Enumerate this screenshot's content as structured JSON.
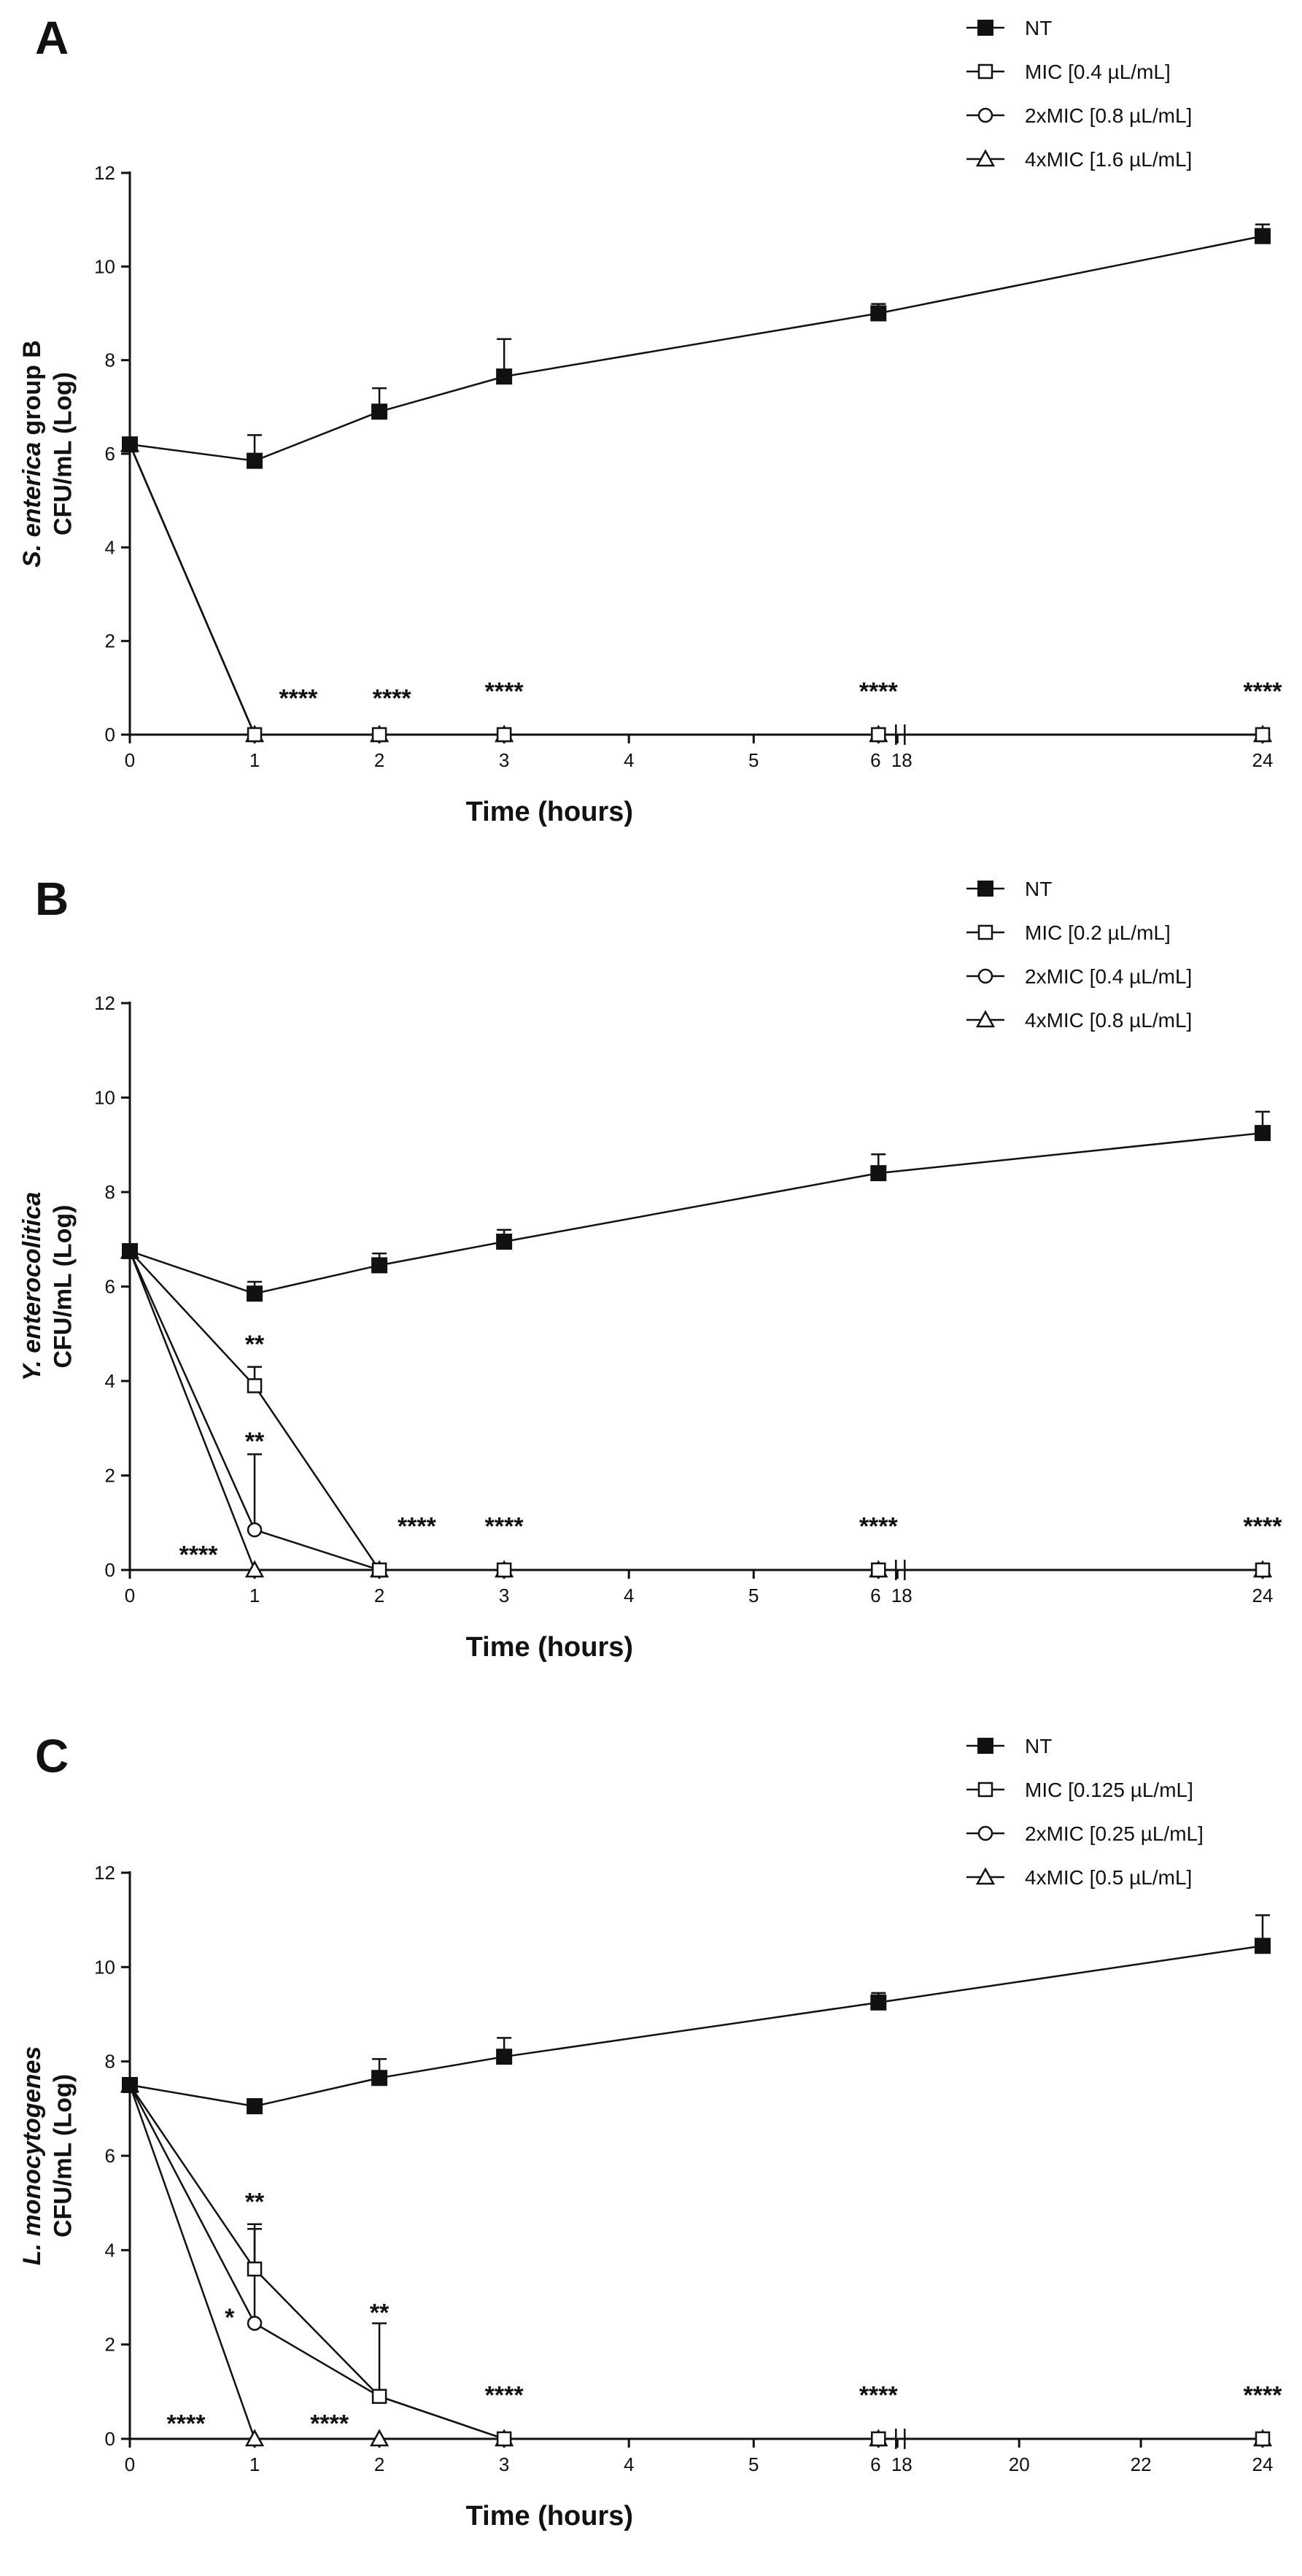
{
  "chart_data": [
    {
      "type": "line",
      "panel": "A",
      "ylabel_lines": [
        [
          {
            "text": "S. enterica",
            "italic": true
          },
          {
            "text": " group B",
            "italic": false
          }
        ],
        [
          {
            "text": "CFU/mL (Log)",
            "italic": false
          }
        ]
      ],
      "xlabel": "Time (hours)",
      "ylim": [
        0,
        12
      ],
      "yticks": [
        0,
        2,
        4,
        6,
        8,
        10,
        12
      ],
      "xticks": [
        0,
        1,
        2,
        3,
        4,
        5,
        6,
        18,
        24
      ],
      "series": [
        {
          "name": "NT",
          "marker": "square-filled",
          "x": [
            0,
            1,
            2,
            3,
            6,
            24
          ],
          "y": [
            6.2,
            5.85,
            6.9,
            7.65,
            9.0,
            10.65
          ],
          "err": [
            0,
            0.55,
            0.5,
            0.8,
            0.2,
            0.25
          ]
        },
        {
          "name": "MIC [0.4 µL/mL]",
          "marker": "square-open",
          "x": [
            0,
            1,
            2,
            3,
            6,
            24
          ],
          "y": [
            6.2,
            0,
            0,
            0,
            0,
            0
          ],
          "err": [
            0,
            0,
            0,
            0,
            0,
            0
          ]
        },
        {
          "name": "2xMIC [0.8 µL/mL]",
          "marker": "circle-open",
          "x": [
            0,
            1,
            2,
            3,
            6,
            24
          ],
          "y": [
            6.2,
            0,
            0,
            0,
            0,
            0
          ],
          "err": [
            0,
            0,
            0,
            0,
            0,
            0
          ]
        },
        {
          "name": "4xMIC [1.6 µL/mL]",
          "marker": "triangle-open",
          "x": [
            0,
            1,
            2,
            3,
            6,
            24
          ],
          "y": [
            6.2,
            0,
            0,
            0,
            0,
            0
          ],
          "err": [
            0,
            0,
            0,
            0,
            0,
            0
          ]
        }
      ],
      "annotations": [
        {
          "text": "****",
          "x": 1.35,
          "y": 0.6
        },
        {
          "text": "****",
          "x": 2.1,
          "y": 0.6
        },
        {
          "text": "****",
          "x": 3.0,
          "y": 0.75
        },
        {
          "text": "****",
          "x": 6.0,
          "y": 0.75
        },
        {
          "text": "****",
          "x": 24,
          "y": 0.75
        }
      ]
    },
    {
      "type": "line",
      "panel": "B",
      "ylabel_lines": [
        [
          {
            "text": "Y. enterocolitica",
            "italic": true
          }
        ],
        [
          {
            "text": "CFU/mL (Log)",
            "italic": false
          }
        ]
      ],
      "xlabel": "Time (hours)",
      "ylim": [
        0,
        12
      ],
      "yticks": [
        0,
        2,
        4,
        6,
        8,
        10,
        12
      ],
      "xticks": [
        0,
        1,
        2,
        3,
        4,
        5,
        6,
        18,
        24
      ],
      "series": [
        {
          "name": "NT",
          "marker": "square-filled",
          "x": [
            0,
            1,
            2,
            3,
            6,
            24
          ],
          "y": [
            6.75,
            5.85,
            6.45,
            6.95,
            8.4,
            9.25
          ],
          "err": [
            0,
            0.25,
            0.25,
            0.25,
            0.4,
            0.45
          ]
        },
        {
          "name": "MIC [0.2 µL/mL]",
          "marker": "square-open",
          "x": [
            0,
            1,
            2,
            3,
            6,
            24
          ],
          "y": [
            6.75,
            3.9,
            0,
            0,
            0,
            0
          ],
          "err": [
            0,
            0.4,
            0,
            0,
            0,
            0
          ]
        },
        {
          "name": "2xMIC [0.4 µL/mL]",
          "marker": "circle-open",
          "x": [
            0,
            1,
            2,
            3,
            6,
            24
          ],
          "y": [
            6.75,
            0.85,
            0,
            0,
            0,
            0
          ],
          "err": [
            0,
            1.6,
            0,
            0,
            0,
            0
          ]
        },
        {
          "name": "4xMIC [0.8 µL/mL]",
          "marker": "triangle-open",
          "x": [
            0,
            1,
            2,
            3,
            6,
            24
          ],
          "y": [
            6.75,
            0,
            0,
            0,
            0,
            0
          ],
          "err": [
            0,
            0,
            0,
            0,
            0,
            0
          ]
        }
      ],
      "annotations": [
        {
          "text": "**",
          "x": 1.0,
          "y": 4.6
        },
        {
          "text": "**",
          "x": 1.0,
          "y": 2.55
        },
        {
          "text": "****",
          "x": 0.55,
          "y": 0.15
        },
        {
          "text": "****",
          "x": 2.3,
          "y": 0.75
        },
        {
          "text": "****",
          "x": 3.0,
          "y": 0.75
        },
        {
          "text": "****",
          "x": 6.0,
          "y": 0.75
        },
        {
          "text": "****",
          "x": 24,
          "y": 0.75
        }
      ]
    },
    {
      "type": "line",
      "panel": "C",
      "ylabel_lines": [
        [
          {
            "text": "L. monocytogenes",
            "italic": true
          }
        ],
        [
          {
            "text": "CFU/mL (Log)",
            "italic": false
          }
        ]
      ],
      "xlabel": "Time (hours)",
      "ylim": [
        0,
        12
      ],
      "yticks": [
        0,
        2,
        4,
        6,
        8,
        10,
        12
      ],
      "xticks": [
        0,
        1,
        2,
        3,
        4,
        5,
        6,
        18,
        20,
        22,
        24
      ],
      "series": [
        {
          "name": "NT",
          "marker": "square-filled",
          "x": [
            0,
            1,
            2,
            3,
            6,
            24
          ],
          "y": [
            7.5,
            7.05,
            7.65,
            8.1,
            9.25,
            10.45
          ],
          "err": [
            0,
            0.15,
            0.4,
            0.4,
            0.2,
            0.65
          ]
        },
        {
          "name": "MIC [0.125 µL/mL]",
          "marker": "square-open",
          "x": [
            0,
            1,
            2,
            3,
            6,
            24
          ],
          "y": [
            7.5,
            3.6,
            0.9,
            0,
            0,
            0
          ],
          "err": [
            0,
            0.95,
            0,
            0,
            0,
            0
          ]
        },
        {
          "name": "2xMIC [0.25 µL/mL]",
          "marker": "circle-open",
          "x": [
            0,
            1,
            2,
            3,
            6,
            24
          ],
          "y": [
            7.5,
            2.45,
            0.9,
            0,
            0,
            0
          ],
          "err": [
            0,
            2.0,
            1.55,
            0,
            0,
            0
          ]
        },
        {
          "name": "4xMIC [0.5 µL/mL]",
          "marker": "triangle-open",
          "x": [
            0,
            1,
            2,
            3,
            6,
            24
          ],
          "y": [
            7.5,
            0,
            0,
            0,
            0,
            0
          ],
          "err": [
            0,
            0,
            0,
            0,
            0,
            0
          ]
        }
      ],
      "annotations": [
        {
          "text": "**",
          "x": 1.0,
          "y": 4.85
        },
        {
          "text": "*",
          "x": 0.8,
          "y": 2.4
        },
        {
          "text": "**",
          "x": 2.0,
          "y": 2.5
        },
        {
          "text": "****",
          "x": 0.45,
          "y": 0.15
        },
        {
          "text": "****",
          "x": 1.6,
          "y": 0.15
        },
        {
          "text": "****",
          "x": 3.0,
          "y": 0.75
        },
        {
          "text": "****",
          "x": 6.0,
          "y": 0.75
        },
        {
          "text": "****",
          "x": 24,
          "y": 0.75
        }
      ]
    }
  ]
}
